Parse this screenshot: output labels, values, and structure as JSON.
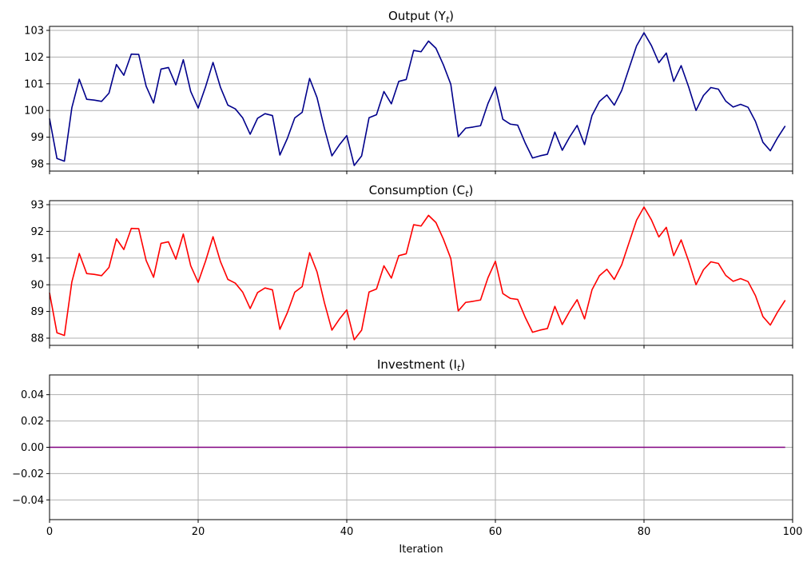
{
  "chart_data": [
    {
      "type": "line",
      "title": "Output (Y",
      "title_sub": "t",
      "color": "#00008b",
      "ylim": [
        97.73,
        103.15
      ],
      "yticks": [
        98,
        99,
        100,
        101,
        102,
        103
      ],
      "xlim": [
        0,
        100
      ],
      "xticks": [
        0,
        20,
        40,
        60,
        80,
        100
      ],
      "show_xticklabels": false,
      "grid": true,
      "series": [
        {
          "values": [
            99.7,
            98.2,
            98.1,
            100.1,
            101.17,
            100.42,
            100.39,
            100.34,
            100.65,
            101.72,
            101.32,
            102.11,
            102.1,
            100.91,
            100.28,
            101.55,
            101.61,
            100.96,
            101.9,
            100.71,
            100.09,
            100.89,
            101.8,
            100.87,
            100.2,
            100.06,
            99.72,
            99.11,
            99.71,
            99.88,
            99.81,
            98.33,
            98.95,
            99.72,
            99.93,
            101.2,
            100.48,
            99.32,
            98.3,
            98.71,
            99.06,
            97.94,
            98.3,
            99.73,
            99.84,
            100.71,
            100.25,
            101.09,
            101.16,
            102.25,
            102.2,
            102.6,
            102.33,
            101.71,
            100.98,
            99.02,
            99.34,
            99.38,
            99.43,
            100.26,
            100.88,
            99.67,
            99.49,
            99.45,
            98.79,
            98.22,
            98.3,
            98.36,
            99.19,
            98.51,
            99.01,
            99.44,
            98.72,
            99.81,
            100.34,
            100.58,
            100.2,
            100.75,
            101.59,
            102.42,
            102.91,
            102.43,
            101.79,
            102.15,
            101.09,
            101.68,
            100.89,
            100.0,
            100.56,
            100.86,
            100.8,
            100.35,
            100.13,
            100.23,
            100.12,
            99.59,
            98.81,
            98.49,
            98.99,
            99.42
          ]
        }
      ]
    },
    {
      "type": "line",
      "title": "Consumption (C",
      "title_sub": "t",
      "color": "#ff0000",
      "ylim": [
        87.73,
        93.15
      ],
      "yticks": [
        88,
        89,
        90,
        91,
        92,
        93
      ],
      "xlim": [
        0,
        100
      ],
      "xticks": [
        0,
        20,
        40,
        60,
        80,
        100
      ],
      "show_xticklabels": false,
      "grid": true,
      "series": [
        {
          "values": [
            89.7,
            88.2,
            88.1,
            90.1,
            91.17,
            90.42,
            90.39,
            90.34,
            90.65,
            91.72,
            91.32,
            92.11,
            92.1,
            90.91,
            90.28,
            91.55,
            91.61,
            90.96,
            91.9,
            90.71,
            90.09,
            90.89,
            91.8,
            90.87,
            90.2,
            90.06,
            89.72,
            89.11,
            89.71,
            89.88,
            89.81,
            88.33,
            88.95,
            89.72,
            89.93,
            91.2,
            90.48,
            89.32,
            88.3,
            88.71,
            89.06,
            87.94,
            88.3,
            89.73,
            89.84,
            90.71,
            90.25,
            91.09,
            91.16,
            92.25,
            92.2,
            92.6,
            92.33,
            91.71,
            90.98,
            89.02,
            89.34,
            89.38,
            89.43,
            90.26,
            90.88,
            89.67,
            89.49,
            89.45,
            88.79,
            88.22,
            88.3,
            88.36,
            89.19,
            88.51,
            89.01,
            89.44,
            88.72,
            89.81,
            90.34,
            90.58,
            90.2,
            90.75,
            91.59,
            92.42,
            92.91,
            92.43,
            91.79,
            92.15,
            91.09,
            91.68,
            90.89,
            90.0,
            90.56,
            90.86,
            90.8,
            90.35,
            90.13,
            90.23,
            90.12,
            89.59,
            88.81,
            88.49,
            88.99,
            89.42
          ]
        }
      ]
    },
    {
      "type": "line",
      "title": "Investment (I",
      "title_sub": "t",
      "color": "#800080",
      "ylim": [
        -0.055,
        0.055
      ],
      "yticks": [
        0.04,
        0.02,
        0.0,
        -0.02,
        -0.04
      ],
      "ytick_labels": [
        "0.04",
        "0.02",
        "0.00",
        "−0.02",
        "−0.04"
      ],
      "xlim": [
        0,
        100
      ],
      "xticks": [
        0,
        20,
        40,
        60,
        80,
        100
      ],
      "xtick_labels": [
        "0",
        "20",
        "40",
        "60",
        "80",
        "100"
      ],
      "show_xticklabels": true,
      "xlabel": "Iteration",
      "grid": true,
      "series": [
        {
          "values": [
            0,
            0,
            0,
            0,
            0,
            0,
            0,
            0,
            0,
            0,
            0,
            0,
            0,
            0,
            0,
            0,
            0,
            0,
            0,
            0,
            0,
            0,
            0,
            0,
            0,
            0,
            0,
            0,
            0,
            0,
            0,
            0,
            0,
            0,
            0,
            0,
            0,
            0,
            0,
            0,
            0,
            0,
            0,
            0,
            0,
            0,
            0,
            0,
            0,
            0,
            0,
            0,
            0,
            0,
            0,
            0,
            0,
            0,
            0,
            0,
            0,
            0,
            0,
            0,
            0,
            0,
            0,
            0,
            0,
            0,
            0,
            0,
            0,
            0,
            0,
            0,
            0,
            0,
            0,
            0,
            0,
            0,
            0,
            0,
            0,
            0,
            0,
            0,
            0,
            0,
            0,
            0,
            0,
            0,
            0,
            0,
            0,
            0,
            0,
            0
          ]
        }
      ]
    }
  ]
}
